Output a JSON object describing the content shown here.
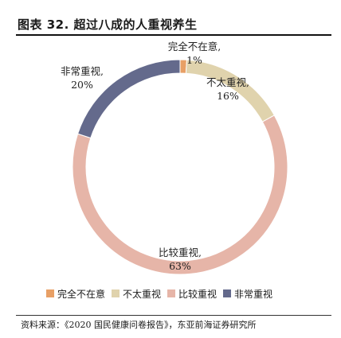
{
  "figure": {
    "title": "图表 32. 超过八成的人重视养生",
    "source": "资料来源：《2020 国民健康问卷报告》，东亚前海证券研究所"
  },
  "chart_data": {
    "type": "donut",
    "series": [
      {
        "name": "完全不在意",
        "value": 1,
        "color": "#e8a066"
      },
      {
        "name": "不太重视",
        "value": 16,
        "color": "#e0d3ad"
      },
      {
        "name": "比较重视",
        "value": 63,
        "color": "#e6b5a8"
      },
      {
        "name": "非常重视",
        "value": 20,
        "color": "#646a8c"
      }
    ],
    "data_labels": [
      {
        "name": "完全不在意,",
        "value": "1%"
      },
      {
        "name": "不太重视,",
        "value": "16%"
      },
      {
        "name": "比较重视,",
        "value": "63%"
      },
      {
        "name": "非常重视,",
        "value": "20%"
      }
    ],
    "legend_position": "bottom"
  }
}
